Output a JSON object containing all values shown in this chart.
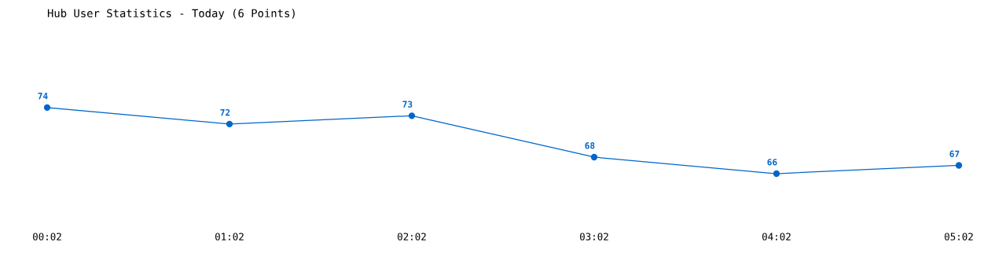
{
  "chart_data": {
    "type": "line",
    "title": "Hub User Statistics - Today (6 Points)",
    "categories": [
      "00:02",
      "01:02",
      "02:02",
      "03:02",
      "04:02",
      "05:02"
    ],
    "series": [
      {
        "color": "#0066cc",
        "values": [
          74,
          72,
          73,
          68,
          66,
          67
        ]
      }
    ],
    "data_labels": true,
    "marker": "circle",
    "line_style": "solid",
    "grid": false,
    "legend": false
  }
}
